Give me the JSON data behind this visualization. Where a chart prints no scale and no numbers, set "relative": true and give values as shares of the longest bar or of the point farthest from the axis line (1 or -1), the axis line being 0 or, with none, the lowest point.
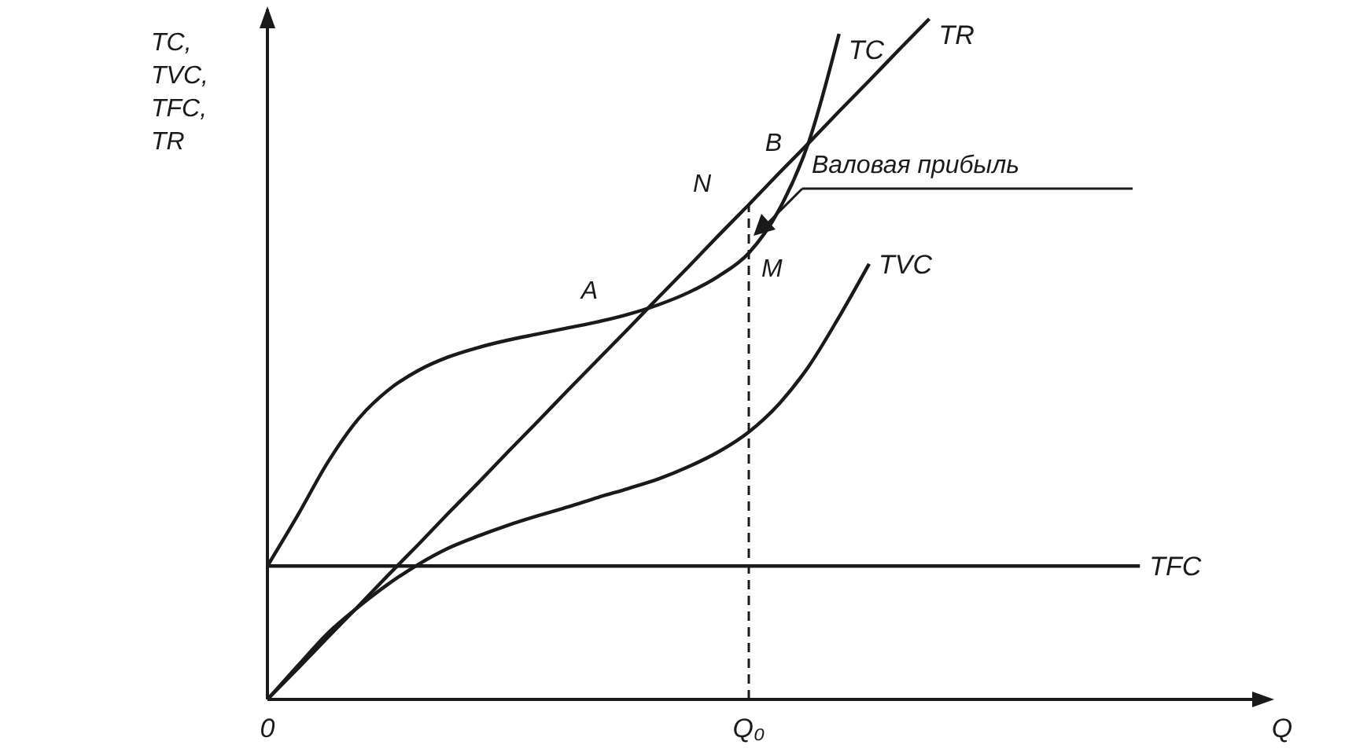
{
  "chart_data": {
    "type": "line",
    "relative": true,
    "ylabel": "TC,\nTVC,\nTFC,\nTR",
    "xlabel": "Q",
    "categories": [
      "0",
      null,
      null,
      null,
      null,
      null,
      null,
      null,
      null,
      null,
      null,
      null,
      null,
      null,
      null,
      null,
      "Q₀",
      null,
      null,
      null,
      null,
      null,
      null,
      null,
      null,
      null,
      null,
      null,
      null,
      null,
      null,
      null,
      null,
      null
    ],
    "series": [
      {
        "name": "TC",
        "color": "#1a1a1a",
        "values": [
          0.196,
          0.27,
          0.348,
          0.411,
          0.454,
          0.483,
          0.503,
          0.517,
          0.528,
          0.537,
          0.546,
          0.555,
          0.566,
          0.58,
          0.598,
          0.622,
          0.656,
          0.719,
          0.82,
          0.978,
          null,
          null,
          null,
          null,
          null,
          null,
          null,
          null,
          null,
          null,
          null,
          null,
          null,
          null
        ]
      },
      {
        "name": "TR",
        "color": "#1a1a1a",
        "values": [
          0,
          0.045,
          0.091,
          0.136,
          0.182,
          0.227,
          0.273,
          0.318,
          0.364,
          0.409,
          0.455,
          0.5,
          0.545,
          0.591,
          0.636,
          0.682,
          0.727,
          0.773,
          0.818,
          0.864,
          0.909,
          0.955,
          1,
          null,
          null,
          null,
          null,
          null,
          null,
          null,
          null,
          null,
          null,
          null
        ]
      },
      {
        "name": "TVC",
        "color": "#1a1a1a",
        "values": [
          0,
          0.049,
          0.097,
          0.135,
          0.169,
          0.198,
          0.222,
          0.24,
          0.256,
          0.27,
          0.283,
          0.297,
          0.31,
          0.324,
          0.342,
          0.364,
          0.393,
          0.434,
          0.49,
          0.562,
          0.64,
          null,
          null,
          null,
          null,
          null,
          null,
          null,
          null,
          null,
          null,
          null,
          null,
          null
        ]
      },
      {
        "name": "TFC",
        "color": "#1a1a1a",
        "values": [
          0.196,
          0.196,
          0.196,
          0.196,
          0.196,
          0.196,
          0.196,
          0.196,
          0.196,
          0.196,
          0.196,
          0.196,
          0.196,
          0.196,
          0.196,
          0.196,
          0.196,
          0.196,
          0.196,
          0.196,
          0.196,
          0.196,
          0.196,
          0.196,
          0.196,
          0.196,
          0.196,
          0.196,
          0.196,
          0.196,
          null,
          null,
          null,
          null
        ]
      }
    ],
    "ref_lines": [
      {
        "axis": "x",
        "value": "Q₀",
        "line_style": "dashed"
      }
    ],
    "annotations": [
      "A",
      "N",
      "M",
      "B",
      "Валовая прибыль"
    ],
    "legend": false,
    "marker": "none",
    "line_style": "solid"
  }
}
